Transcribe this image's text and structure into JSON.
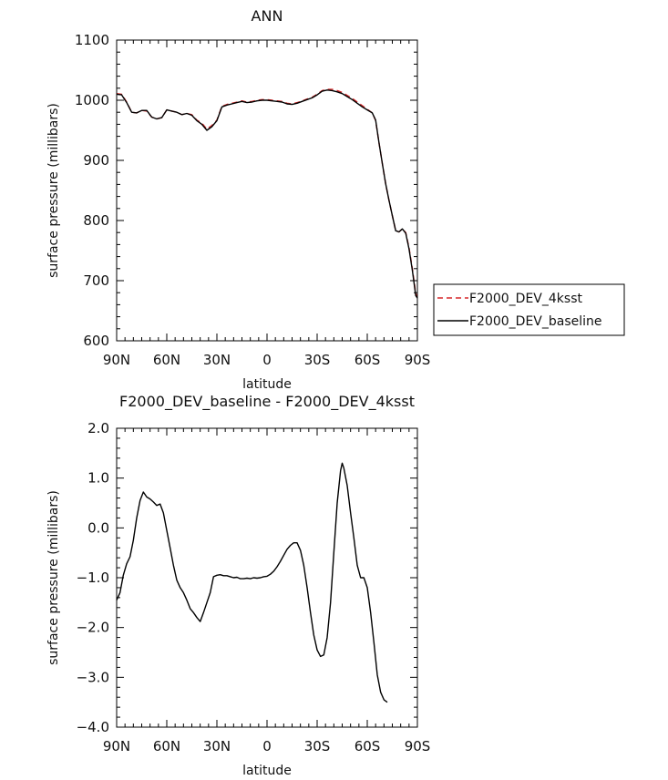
{
  "chart_data": [
    {
      "type": "line",
      "title": "ANN",
      "xlabel": "latitude",
      "ylabel": "surface pressure (millibars)",
      "xlim": [
        90,
        -90
      ],
      "ylim": [
        600,
        1100
      ],
      "xticks": [
        {
          "value": 90,
          "label": "90N"
        },
        {
          "value": 60,
          "label": "60N"
        },
        {
          "value": 30,
          "label": "30N"
        },
        {
          "value": 0,
          "label": "0"
        },
        {
          "value": -30,
          "label": "30S"
        },
        {
          "value": -60,
          "label": "60S"
        },
        {
          "value": -90,
          "label": "90S"
        }
      ],
      "yticks": [
        {
          "value": 600,
          "label": "600"
        },
        {
          "value": 700,
          "label": "700"
        },
        {
          "value": 800,
          "label": "800"
        },
        {
          "value": 900,
          "label": "900"
        },
        {
          "value": 1000,
          "label": "1000"
        },
        {
          "value": 1100,
          "label": "1100"
        }
      ],
      "legend": "right",
      "series": [
        {
          "name": "F2000_DEV_4ksst",
          "color": "#d62728",
          "dash": "dashed",
          "points": [
            [
              90,
              1011
            ],
            [
              87,
              1010
            ],
            [
              84,
              997
            ],
            [
              81,
              980
            ],
            [
              78,
              979
            ],
            [
              75,
              983
            ],
            [
              72,
              982
            ],
            [
              69,
              972
            ],
            [
              66,
              969
            ],
            [
              63,
              971
            ],
            [
              60,
              984
            ],
            [
              57,
              982
            ],
            [
              54,
              980
            ],
            [
              51,
              976
            ],
            [
              48,
              978
            ],
            [
              45,
              976
            ],
            [
              42,
              967
            ],
            [
              39,
              962
            ],
            [
              36,
              952
            ],
            [
              33,
              958
            ],
            [
              30,
              967
            ],
            [
              27,
              990
            ],
            [
              24,
              993
            ],
            [
              21,
              995
            ],
            [
              18,
              997
            ],
            [
              15,
              999
            ],
            [
              12,
              997
            ],
            [
              9,
              998
            ],
            [
              6,
              1000
            ],
            [
              3,
              1001
            ],
            [
              0,
              1001
            ],
            [
              -3,
              1000
            ],
            [
              -6,
              999
            ],
            [
              -9,
              998
            ],
            [
              -12,
              995
            ],
            [
              -15,
              994
            ],
            [
              -18,
              996
            ],
            [
              -21,
              999
            ],
            [
              -24,
              1002
            ],
            [
              -27,
              1005
            ],
            [
              -30,
              1010
            ],
            [
              -33,
              1016
            ],
            [
              -36,
              1018
            ],
            [
              -39,
              1018
            ],
            [
              -42,
              1016
            ],
            [
              -45,
              1013
            ],
            [
              -48,
              1008
            ],
            [
              -51,
              1003
            ],
            [
              -54,
              997
            ],
            [
              -57,
              991
            ],
            [
              -60,
              985
            ],
            [
              -63,
              979
            ],
            [
              -65,
              966
            ],
            [
              -67,
              930
            ],
            [
              -69,
              895
            ],
            [
              -71,
              861
            ],
            [
              -73,
              834
            ],
            [
              -75,
              808
            ],
            [
              -77,
              783
            ],
            [
              -79,
              781
            ],
            [
              -81,
              786
            ],
            [
              -83,
              780
            ],
            [
              -85,
              755
            ],
            [
              -87,
              720
            ],
            [
              -89,
              678
            ],
            [
              -90,
              674
            ]
          ]
        },
        {
          "name": "F2000_DEV_baseline",
          "color": "#000000",
          "dash": "solid",
          "points": [
            [
              90,
              1010
            ],
            [
              87,
              1009
            ],
            [
              84,
              996
            ],
            [
              81,
              980
            ],
            [
              78,
              979
            ],
            [
              75,
              983
            ],
            [
              72,
              983
            ],
            [
              69,
              972
            ],
            [
              66,
              969
            ],
            [
              63,
              971
            ],
            [
              60,
              984
            ],
            [
              57,
              982
            ],
            [
              54,
              980
            ],
            [
              51,
              976
            ],
            [
              48,
              978
            ],
            [
              45,
              975
            ],
            [
              42,
              966
            ],
            [
              39,
              960
            ],
            [
              36,
              950
            ],
            [
              33,
              956
            ],
            [
              30,
              966
            ],
            [
              27,
              989
            ],
            [
              24,
              992
            ],
            [
              21,
              994
            ],
            [
              18,
              996
            ],
            [
              15,
              998
            ],
            [
              12,
              996
            ],
            [
              9,
              997
            ],
            [
              6,
              999
            ],
            [
              3,
              1000
            ],
            [
              0,
              1000
            ],
            [
              -3,
              999
            ],
            [
              -6,
              998
            ],
            [
              -9,
              997
            ],
            [
              -12,
              994
            ],
            [
              -15,
              993
            ],
            [
              -18,
              995
            ],
            [
              -21,
              998
            ],
            [
              -24,
              1001
            ],
            [
              -27,
              1004
            ],
            [
              -30,
              1009
            ],
            [
              -33,
              1015
            ],
            [
              -36,
              1017
            ],
            [
              -39,
              1016
            ],
            [
              -42,
              1014
            ],
            [
              -45,
              1011
            ],
            [
              -48,
              1006
            ],
            [
              -51,
              1001
            ],
            [
              -54,
              995
            ],
            [
              -57,
              989
            ],
            [
              -60,
              984
            ],
            [
              -63,
              979
            ],
            [
              -65,
              967
            ],
            [
              -67,
              930
            ],
            [
              -69,
              895
            ],
            [
              -71,
              861
            ],
            [
              -73,
              834
            ],
            [
              -75,
              808
            ],
            [
              -77,
              783
            ],
            [
              -79,
              781
            ],
            [
              -81,
              786
            ],
            [
              -83,
              779
            ],
            [
              -85,
              753
            ],
            [
              -87,
              717
            ],
            [
              -89,
              675
            ],
            [
              -90,
              671
            ]
          ]
        }
      ]
    },
    {
      "type": "line",
      "title": "F2000_DEV_baseline - F2000_DEV_4ksst",
      "xlabel": "latitude",
      "ylabel": "surface pressure (millibars)",
      "xlim": [
        90,
        -90
      ],
      "ylim": [
        -4,
        2
      ],
      "xticks": [
        {
          "value": 90,
          "label": "90N"
        },
        {
          "value": 60,
          "label": "60N"
        },
        {
          "value": 30,
          "label": "30N"
        },
        {
          "value": 0,
          "label": "0"
        },
        {
          "value": -30,
          "label": "30S"
        },
        {
          "value": -60,
          "label": "60S"
        },
        {
          "value": -90,
          "label": "90S"
        }
      ],
      "yticks": [
        {
          "value": -4,
          "label": "−4.0"
        },
        {
          "value": -3,
          "label": "−3.0"
        },
        {
          "value": -2,
          "label": "−2.0"
        },
        {
          "value": -1,
          "label": "−1.0"
        },
        {
          "value": 0,
          "label": "0.0"
        },
        {
          "value": 1,
          "label": "1.0"
        },
        {
          "value": 2,
          "label": "2.0"
        }
      ],
      "series": [
        {
          "color": "#000000",
          "dash": "solid",
          "points": [
            [
              90,
              -1.45
            ],
            [
              88,
              -1.3
            ],
            [
              86,
              -0.95
            ],
            [
              84,
              -0.72
            ],
            [
              82,
              -0.58
            ],
            [
              80,
              -0.25
            ],
            [
              78,
              0.2
            ],
            [
              76,
              0.55
            ],
            [
              74,
              0.72
            ],
            [
              72,
              0.62
            ],
            [
              70,
              0.58
            ],
            [
              68,
              0.52
            ],
            [
              66,
              0.45
            ],
            [
              64,
              0.48
            ],
            [
              62,
              0.3
            ],
            [
              60,
              -0.05
            ],
            [
              58,
              -0.4
            ],
            [
              56,
              -0.75
            ],
            [
              54,
              -1.05
            ],
            [
              52,
              -1.2
            ],
            [
              50,
              -1.3
            ],
            [
              48,
              -1.45
            ],
            [
              46,
              -1.62
            ],
            [
              44,
              -1.7
            ],
            [
              42,
              -1.8
            ],
            [
              40,
              -1.88
            ],
            [
              38,
              -1.7
            ],
            [
              36,
              -1.5
            ],
            [
              34,
              -1.3
            ],
            [
              32,
              -0.98
            ],
            [
              30,
              -0.95
            ],
            [
              28,
              -0.94
            ],
            [
              26,
              -0.96
            ],
            [
              24,
              -0.96
            ],
            [
              22,
              -0.98
            ],
            [
              20,
              -1.0
            ],
            [
              18,
              -0.99
            ],
            [
              16,
              -1.02
            ],
            [
              14,
              -1.02
            ],
            [
              12,
              -1.01
            ],
            [
              10,
              -1.02
            ],
            [
              8,
              -1.0
            ],
            [
              6,
              -1.01
            ],
            [
              4,
              -1.0
            ],
            [
              2,
              -0.98
            ],
            [
              0,
              -0.97
            ],
            [
              -2,
              -0.93
            ],
            [
              -4,
              -0.87
            ],
            [
              -6,
              -0.78
            ],
            [
              -8,
              -0.67
            ],
            [
              -10,
              -0.55
            ],
            [
              -12,
              -0.43
            ],
            [
              -14,
              -0.35
            ],
            [
              -16,
              -0.3
            ],
            [
              -18,
              -0.3
            ],
            [
              -20,
              -0.45
            ],
            [
              -22,
              -0.75
            ],
            [
              -24,
              -1.2
            ],
            [
              -26,
              -1.7
            ],
            [
              -28,
              -2.15
            ],
            [
              -30,
              -2.45
            ],
            [
              -32,
              -2.58
            ],
            [
              -34,
              -2.55
            ],
            [
              -36,
              -2.2
            ],
            [
              -38,
              -1.5
            ],
            [
              -40,
              -0.5
            ],
            [
              -42,
              0.5
            ],
            [
              -44,
              1.15
            ],
            [
              -45,
              1.3
            ],
            [
              -46,
              1.2
            ],
            [
              -48,
              0.85
            ],
            [
              -50,
              0.3
            ],
            [
              -52,
              -0.2
            ],
            [
              -54,
              -0.75
            ],
            [
              -56,
              -1.0
            ],
            [
              -58,
              -1.0
            ],
            [
              -60,
              -1.2
            ],
            [
              -62,
              -1.7
            ],
            [
              -64,
              -2.3
            ],
            [
              -66,
              -2.95
            ],
            [
              -68,
              -3.3
            ],
            [
              -70,
              -3.45
            ],
            [
              -72,
              -3.5
            ]
          ]
        }
      ]
    }
  ]
}
